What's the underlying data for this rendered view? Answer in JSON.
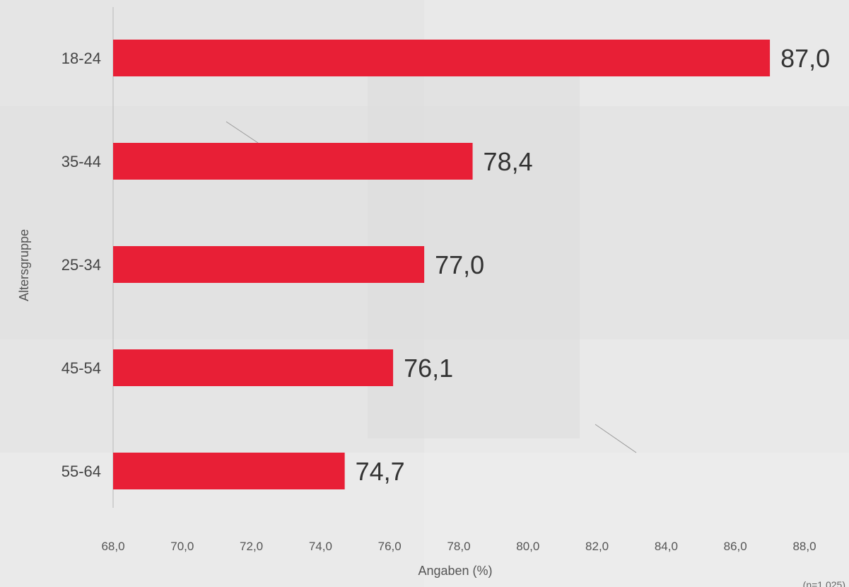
{
  "chart_data": {
    "type": "bar",
    "orientation": "horizontal",
    "categories": [
      "18-24",
      "35-44",
      "25-34",
      "45-54",
      "55-64"
    ],
    "values": [
      87.0,
      78.4,
      77.0,
      76.1,
      74.7
    ],
    "value_labels": [
      "87,0",
      "78,4",
      "77,0",
      "76,1",
      "74,7"
    ],
    "xlabel": "Angaben (%)",
    "ylabel": "Altersgruppe",
    "xlim": [
      68,
      88
    ],
    "x_ticks": [
      68,
      70,
      72,
      74,
      76,
      78,
      80,
      82,
      84,
      86,
      88
    ],
    "x_tick_labels": [
      "68,0",
      "70,0",
      "72,0",
      "74,0",
      "76,0",
      "78,0",
      "80,0",
      "82,0",
      "84,0",
      "86,0",
      "88,0"
    ],
    "grid": false,
    "legend": "none",
    "bar_color": "#e81f36",
    "note": "(n=1.025)"
  },
  "colors": {
    "bar": "#e81f36",
    "background": "#e9e9e9",
    "axis": "#c8c8c8"
  }
}
